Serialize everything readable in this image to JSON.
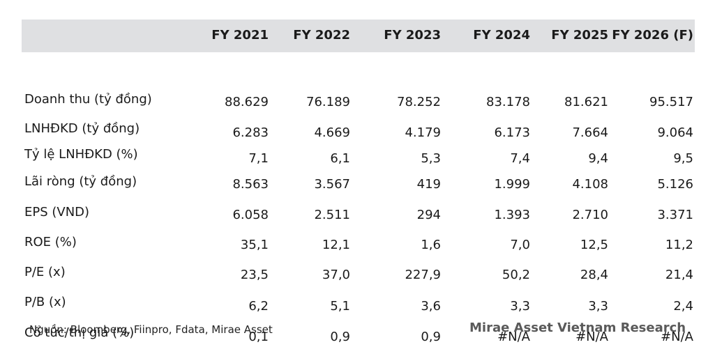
{
  "table": {
    "columns": [
      "FY 2021",
      "FY 2022",
      "FY 2023",
      "FY 2024",
      "FY 2025",
      "FY 2026 (F)"
    ],
    "rows": [
      {
        "label": "Doanh thu (tỷ đồng)",
        "values": [
          "88.629",
          "76.189",
          "78.252",
          "83.178",
          "81.621",
          "95.517"
        ]
      },
      {
        "label": "LNHĐKD (tỷ đồng)",
        "values": [
          "6.283",
          "4.669",
          "4.179",
          "6.173",
          "7.664",
          "9.064"
        ]
      },
      {
        "label": "Tỷ lệ LNHĐKD (%)",
        "values": [
          "7,1",
          "6,1",
          "5,3",
          "7,4",
          "9,4",
          "9,5"
        ]
      },
      {
        "label": "Lãi ròng (tỷ đồng)",
        "values": [
          "8.563",
          "3.567",
          "419",
          "1.999",
          "4.108",
          "5.126"
        ]
      },
      {
        "label": "EPS (VND)",
        "values": [
          "6.058",
          "2.511",
          "294",
          "1.393",
          "2.710",
          "3.371"
        ]
      },
      {
        "label": "ROE (%)",
        "values": [
          "35,1",
          "12,1",
          "1,6",
          "7,0",
          "12,5",
          "11,2"
        ]
      },
      {
        "label": "P/E (x)",
        "values": [
          "23,5",
          "37,0",
          "227,9",
          "50,2",
          "28,4",
          "21,4"
        ]
      },
      {
        "label": "P/B (x)",
        "values": [
          "6,2",
          "5,1",
          "3,6",
          "3,3",
          "3,3",
          "2,4"
        ]
      },
      {
        "label": "Cổ tức/thị giá (%)",
        "values": [
          "0,1",
          "0,9",
          "0,9",
          "#N/A",
          "#N/A",
          "#N/A"
        ]
      }
    ]
  },
  "footer": {
    "source": "Nguồn: Bloomberg, Fiinpro, Fdata, Mirae Asset",
    "brand": "Mirae Asset Vietnam Research"
  }
}
